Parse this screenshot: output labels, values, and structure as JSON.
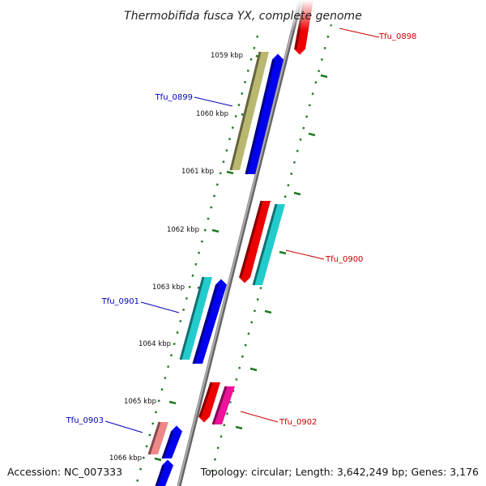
{
  "title": "Thermobifida fusca YX, complete genome",
  "footer": {
    "accession": "Accession: NC_007333",
    "topology": "Topology: circular; Length: 3,642,249 bp; Genes: 3,176"
  },
  "colors": {
    "backbone": "#888888",
    "tick": "#1f7a1f",
    "forward_label": "#0000bb",
    "reverse_label": "#cc0000"
  },
  "kbp_labels": [
    "1059 kbp",
    "1060 kbp",
    "1061 kbp",
    "1062 kbp",
    "1063 kbp",
    "1064 kbp",
    "1065 kbp",
    "1066 kbp"
  ],
  "genes": [
    {
      "label": "Tfu_0898",
      "strand": "reverse",
      "color": "#ee0000"
    },
    {
      "label": "Tfu_0899",
      "strand": "forward",
      "color": "#b8b870"
    },
    {
      "label": "",
      "strand": "forward",
      "color": "#0000ee"
    },
    {
      "label": "Tfu_0900",
      "strand": "reverse",
      "color": "#ee0000"
    },
    {
      "label": "",
      "strand": "reverse",
      "color": "#22cccc"
    },
    {
      "label": "Tfu_0901",
      "strand": "forward",
      "color": "#22cccc"
    },
    {
      "label": "",
      "strand": "forward",
      "color": "#0000ee"
    },
    {
      "label": "Tfu_0902",
      "strand": "reverse",
      "color": "#ee0000"
    },
    {
      "label": "",
      "strand": "reverse",
      "color": "#ee1199"
    },
    {
      "label": "Tfu_0903",
      "strand": "forward",
      "color": "#ee8888"
    },
    {
      "label": "",
      "strand": "forward",
      "color": "#0000ee"
    },
    {
      "label": "",
      "strand": "forward",
      "color": "#0000ee"
    }
  ]
}
